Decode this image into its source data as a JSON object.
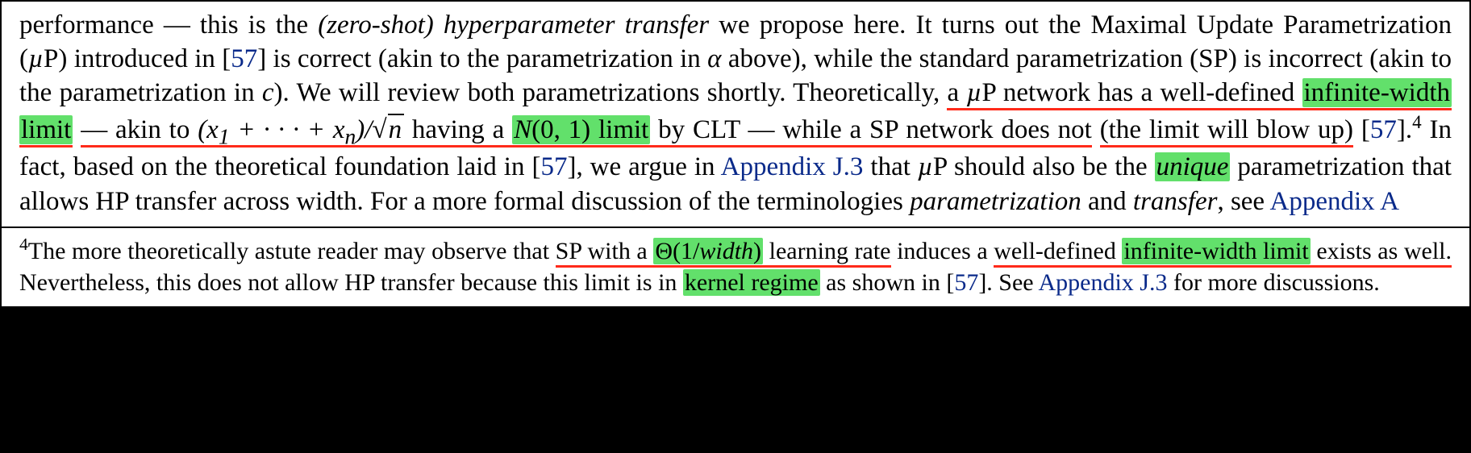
{
  "colors": {
    "highlight": "#62e06b",
    "underline": "#ff2a1a",
    "link": "#0a2a8a"
  },
  "main": {
    "t01": "performance — this is the ",
    "t02": "(zero-shot) hyperparameter transfer",
    "t03": " we propose here.  It turns out the Maximal Update Parametrization (",
    "mup1": "µ",
    "t04": "P) introduced in [",
    "ref1": "57",
    "t05": "] is correct (akin to the parametrization in ",
    "alpha": "α",
    "t06": " above), while the standard parametrization (SP) is incorrect (akin to the parametrization in ",
    "cvar": "c",
    "t07": "). We will review both parametrizations shortly. Theoretically, ",
    "u1a": "a ",
    "u1b": "µ",
    "u1c": "P network has a well-defined ",
    "hl1": "infinite-width",
    "br_hl1": "limit",
    "u2a": " — akin to ",
    "math1a": "(x",
    "math1sub1": "1",
    "math1b": " + · · · + x",
    "math1subn": "n",
    "math1c": ")/",
    "sqrt_sym": "√",
    "sqrt_n": "n",
    "u2b": " having a ",
    "hl2a": "N",
    "hl2b": "(0, 1) limit",
    "u2c": " by CLT — while a SP network does not",
    "u3": "(the limit will blow up)",
    "t08": " [",
    "ref2": "57",
    "t09": "].",
    "fn4": "4",
    "t10": " In fact, based on the theoretical foundation laid in [",
    "ref3": "57",
    "t11": "], we argue in ",
    "lnk1": "Appendix J.3",
    "t12": " that ",
    "mup2": "µ",
    "t13": "P should also be the ",
    "hl3": "unique",
    "t14": " parametrization that allows HP transfer across width. For a more formal discussion of the terminologies ",
    "i1": "parametrization",
    "t15": " and ",
    "i2": "transfer",
    "t16": ", see ",
    "lnk2": "Appendix A"
  },
  "foot": {
    "idx": "4",
    "t01": "The more theoretically astute reader may observe that ",
    "u1": "SP with a ",
    "hl1a": "Θ(1/",
    "hl1b": "width",
    "hl1c": ")",
    "u1b": " learning rate",
    "u2": " induces a",
    "br_u1": "well-defined ",
    "hl2": "infinite-width limit",
    "u3": " exists as well.",
    "t02": " Nevertheless, this does not allow HP transfer because this limit is in ",
    "hl3": "kernel regime",
    "t03": " as shown in [",
    "ref1": "57",
    "t04": "]. See ",
    "lnk1": "Appendix J.3",
    "t05": " for more discussions."
  }
}
